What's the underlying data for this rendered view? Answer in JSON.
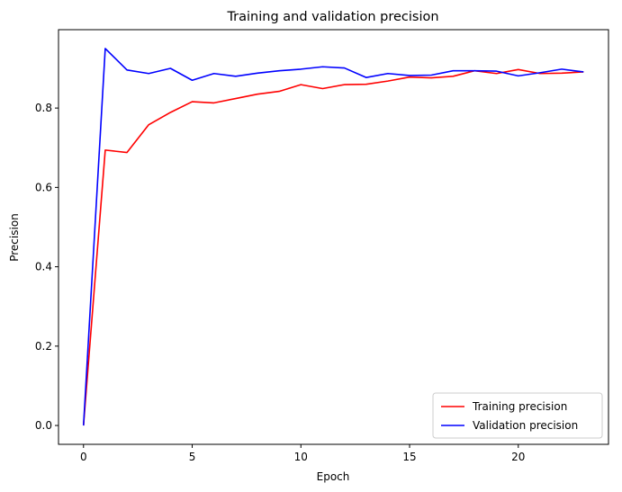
{
  "chart_data": {
    "type": "line",
    "title": "Training and validation precision",
    "xlabel": "Epoch",
    "ylabel": "Precision",
    "xlim": [
      -1.15,
      24.15
    ],
    "ylim": [
      -0.0475,
      0.9975
    ],
    "xticks": [
      0,
      5,
      10,
      15,
      20
    ],
    "xtick_labels": [
      "0",
      "5",
      "10",
      "15",
      "20"
    ],
    "yticks": [
      0.0,
      0.2,
      0.4,
      0.6,
      0.8
    ],
    "ytick_labels": [
      "0.0",
      "0.2",
      "0.4",
      "0.6",
      "0.8"
    ],
    "grid": false,
    "legend_position": "lower-right",
    "x": [
      0,
      1,
      2,
      3,
      4,
      5,
      6,
      7,
      8,
      9,
      10,
      11,
      12,
      13,
      14,
      15,
      16,
      17,
      18,
      19,
      20,
      21,
      22,
      23
    ],
    "series": [
      {
        "name": "Training precision",
        "color": "#ff0000",
        "values": [
          0.0,
          0.694,
          0.688,
          0.758,
          0.789,
          0.816,
          0.813,
          0.824,
          0.835,
          0.842,
          0.859,
          0.849,
          0.859,
          0.86,
          0.868,
          0.878,
          0.876,
          0.88,
          0.894,
          0.887,
          0.897,
          0.887,
          0.888,
          0.891
        ]
      },
      {
        "name": "Validation precision",
        "color": "#0000ff",
        "values": [
          0.0,
          0.95,
          0.896,
          0.887,
          0.9,
          0.87,
          0.887,
          0.88,
          0.888,
          0.894,
          0.898,
          0.904,
          0.901,
          0.877,
          0.887,
          0.882,
          0.883,
          0.894,
          0.894,
          0.893,
          0.881,
          0.889,
          0.898,
          0.891
        ]
      }
    ]
  }
}
